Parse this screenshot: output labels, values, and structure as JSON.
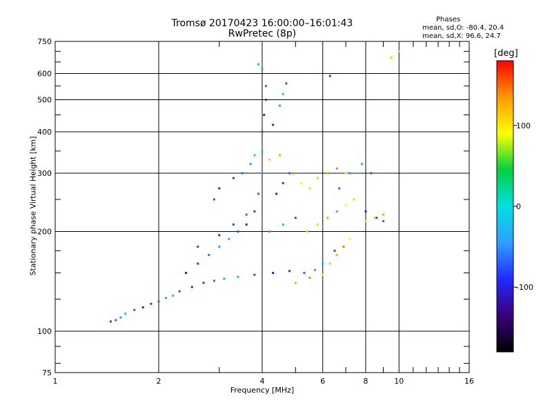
{
  "chart_data": {
    "type": "scatter",
    "title": "Tromsø 20170423 16:00:00–16:01:43",
    "subtitle": "RwPretec (8p)",
    "xlabel": "Frequency [MHz]",
    "ylabel": "Stationary phase Virtual Height [km]",
    "x_scale": "log",
    "y_scale": "log",
    "xlim": [
      1,
      16
    ],
    "ylim": [
      75,
      750
    ],
    "x_ticks": [
      1,
      2,
      4,
      6,
      8,
      10,
      16
    ],
    "x_minor_ticks": [
      3,
      5,
      7,
      9,
      11,
      12,
      13,
      14,
      15
    ],
    "y_ticks": [
      75,
      100,
      200,
      300,
      400,
      500,
      600,
      750
    ],
    "y_minor_ticks": [
      80,
      90,
      125,
      150,
      175,
      250,
      350,
      450,
      550,
      650,
      700
    ],
    "grid": true,
    "colorbar": {
      "label": "[deg]",
      "ticks": [
        100,
        0,
        -100
      ],
      "range": [
        -180,
        180
      ],
      "colors": [
        "#000000",
        "#3a007a",
        "#1f2aff",
        "#2f9fff",
        "#00e0e0",
        "#00d040",
        "#ffff00",
        "#ff9a00",
        "#ff0000"
      ]
    },
    "stats": {
      "header": "Phases",
      "line1": "mean, sd,O: -80.4, 20.4",
      "line2": "mean, sd,X:  96.6, 24.7"
    },
    "series": [
      {
        "values": [
          [
            1.45,
            107
          ],
          [
            1.5,
            108
          ],
          [
            1.55,
            110
          ],
          [
            1.6,
            113
          ],
          [
            1.7,
            116
          ],
          [
            1.8,
            118
          ],
          [
            1.9,
            121
          ],
          [
            2.0,
            123
          ],
          [
            2.1,
            126
          ],
          [
            2.2,
            128
          ],
          [
            2.3,
            132
          ],
          [
            2.5,
            136
          ],
          [
            2.7,
            140
          ],
          [
            2.9,
            142
          ],
          [
            3.1,
            144
          ],
          [
            3.4,
            146
          ],
          [
            3.8,
            148
          ],
          [
            4.3,
            150
          ],
          [
            4.8,
            152
          ],
          [
            5.3,
            150
          ],
          [
            5.7,
            153
          ],
          [
            6.0,
            160
          ],
          [
            6.5,
            175
          ],
          [
            2.4,
            150
          ],
          [
            2.6,
            160
          ],
          [
            2.8,
            170
          ],
          [
            3.0,
            180
          ],
          [
            3.2,
            190
          ],
          [
            3.4,
            200
          ],
          [
            3.6,
            210
          ],
          [
            3.8,
            230
          ],
          [
            3.9,
            260
          ],
          [
            4.0,
            300
          ],
          [
            4.0,
            350
          ],
          [
            4.0,
            400
          ],
          [
            4.05,
            450
          ],
          [
            4.1,
            500
          ],
          [
            4.1,
            550
          ],
          [
            4.0,
            620
          ],
          [
            3.9,
            640
          ],
          [
            2.9,
            250
          ],
          [
            3.0,
            270
          ],
          [
            3.3,
            290
          ],
          [
            3.5,
            300
          ],
          [
            3.7,
            320
          ],
          [
            3.8,
            340
          ],
          [
            2.6,
            180
          ],
          [
            3.0,
            195
          ],
          [
            3.3,
            210
          ],
          [
            3.6,
            225
          ],
          [
            4.2,
            200
          ],
          [
            4.6,
            210
          ],
          [
            5.0,
            220
          ],
          [
            4.4,
            260
          ],
          [
            4.6,
            280
          ],
          [
            4.8,
            300
          ],
          [
            4.5,
            480
          ],
          [
            4.6,
            520
          ],
          [
            4.7,
            560
          ],
          [
            4.3,
            420
          ],
          [
            6.3,
            590
          ],
          [
            6.7,
            270
          ],
          [
            7.2,
            300
          ],
          [
            7.8,
            320
          ],
          [
            8.3,
            300
          ],
          [
            8.0,
            230
          ],
          [
            8.6,
            220
          ],
          [
            9.0,
            215
          ]
        ]
      },
      {
        "values": [
          [
            4.2,
            330
          ],
          [
            4.5,
            340
          ],
          [
            4.9,
            300
          ],
          [
            5.2,
            280
          ],
          [
            5.5,
            270
          ],
          [
            5.8,
            290
          ],
          [
            6.2,
            300
          ],
          [
            6.6,
            310
          ],
          [
            7.0,
            300
          ],
          [
            5.4,
            200
          ],
          [
            5.8,
            210
          ],
          [
            6.2,
            220
          ],
          [
            6.6,
            230
          ],
          [
            7.0,
            240
          ],
          [
            7.4,
            250
          ],
          [
            6.3,
            160
          ],
          [
            6.6,
            170
          ],
          [
            6.9,
            180
          ],
          [
            7.2,
            190
          ],
          [
            9.5,
            670
          ],
          [
            10.0,
            700
          ],
          [
            5.0,
            140
          ],
          [
            5.5,
            145
          ],
          [
            6.0,
            148
          ],
          [
            8.0,
            215
          ],
          [
            8.5,
            220
          ],
          [
            9.0,
            225
          ]
        ]
      }
    ]
  }
}
